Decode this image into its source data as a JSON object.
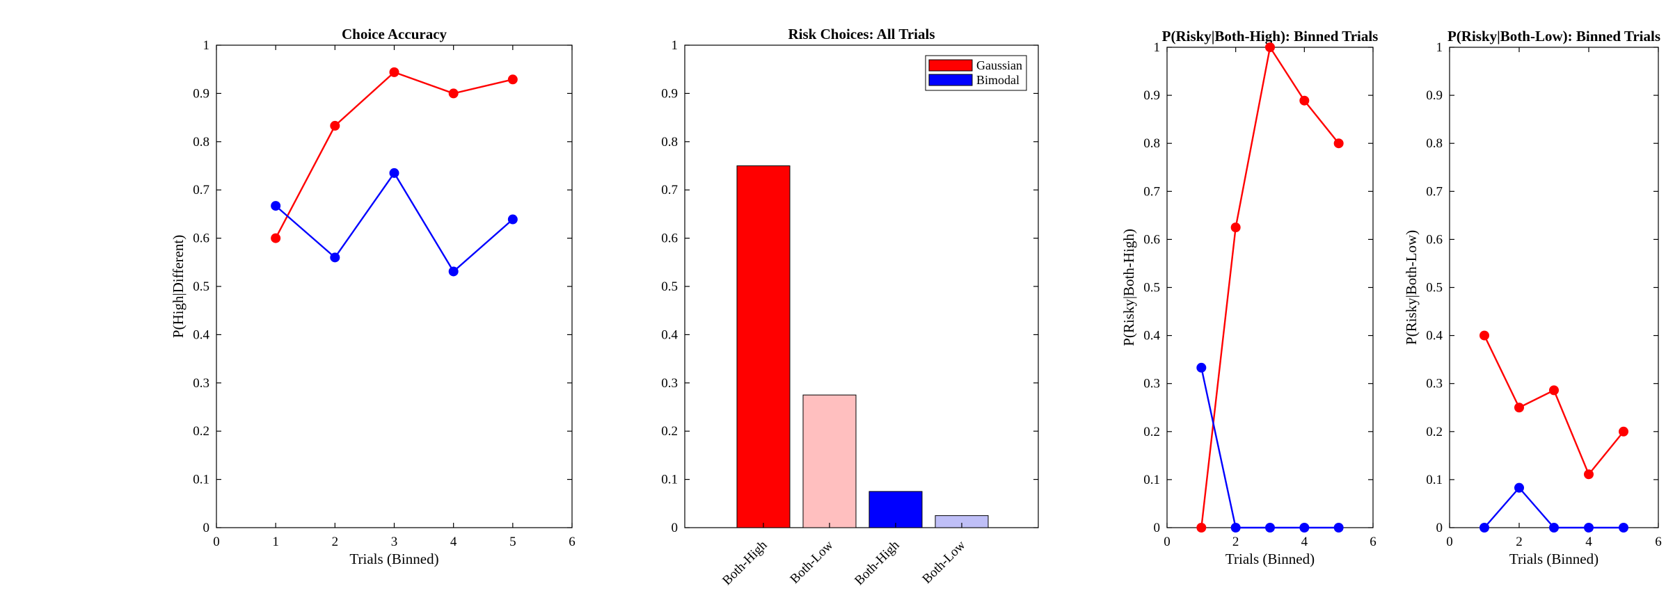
{
  "chart_data": [
    {
      "type": "line",
      "title": "Choice Accuracy",
      "xlabel": "Trials (Binned)",
      "ylabel": "P(High|Different)",
      "xlim": [
        0,
        6
      ],
      "ylim": [
        0,
        1
      ],
      "xticks": [
        0,
        1,
        2,
        3,
        4,
        5,
        6
      ],
      "yticks": [
        0,
        0.1,
        0.2,
        0.3,
        0.4,
        0.5,
        0.6,
        0.7,
        0.8,
        0.9,
        1
      ],
      "x": [
        1,
        2,
        3,
        4,
        5
      ],
      "series": [
        {
          "color": "#ff0000",
          "values": [
            0.6,
            0.833,
            0.944,
            0.9,
            0.929
          ]
        },
        {
          "color": "#0000ff",
          "values": [
            0.667,
            0.56,
            0.735,
            0.531,
            0.639
          ]
        }
      ],
      "grid": false
    },
    {
      "type": "bar",
      "title": "Risk Choices: All Trials",
      "ylim": [
        0,
        1
      ],
      "yticks": [
        0,
        0.1,
        0.2,
        0.3,
        0.4,
        0.5,
        0.6,
        0.7,
        0.8,
        0.9,
        1
      ],
      "categories": [
        "Both-High",
        "Both-Low",
        "Both-High",
        "Both-Low"
      ],
      "values": [
        0.75,
        0.275,
        0.075,
        0.025
      ],
      "bar_colors": [
        "#ff0000",
        "#ffbfbf",
        "#0000ff",
        "#bfbff7"
      ],
      "legend": {
        "position": "top-right",
        "entries": [
          {
            "label": "Gaussian",
            "color": "#ff0000"
          },
          {
            "label": "Bimodal",
            "color": "#0000ff"
          }
        ]
      },
      "grid": false
    },
    {
      "type": "line",
      "title": "P(Risky|Both-High): Binned Trials",
      "xlabel": "Trials (Binned)",
      "ylabel": "P(Risky|Both-High)",
      "xlim": [
        0,
        6
      ],
      "ylim": [
        0,
        1
      ],
      "xticks": [
        0,
        2,
        4,
        6
      ],
      "yticks": [
        0,
        0.1,
        0.2,
        0.3,
        0.4,
        0.5,
        0.6,
        0.7,
        0.8,
        0.9,
        1
      ],
      "x": [
        1,
        2,
        3,
        4,
        5
      ],
      "series": [
        {
          "color": "#ff0000",
          "values": [
            0,
            0.625,
            1.0,
            0.889,
            0.8
          ]
        },
        {
          "color": "#0000ff",
          "values": [
            0.333,
            0,
            0,
            0,
            0
          ]
        }
      ],
      "grid": false
    },
    {
      "type": "line",
      "title": "P(Risky|Both-Low): Binned Trials",
      "xlabel": "Trials (Binned)",
      "ylabel": "P(Risky|Both-Low)",
      "xlim": [
        0,
        6
      ],
      "ylim": [
        0,
        1
      ],
      "xticks": [
        0,
        2,
        4,
        6
      ],
      "yticks": [
        0,
        0.1,
        0.2,
        0.3,
        0.4,
        0.5,
        0.6,
        0.7,
        0.8,
        0.9,
        1
      ],
      "x": [
        1,
        2,
        3,
        4,
        5
      ],
      "series": [
        {
          "color": "#ff0000",
          "values": [
            0.4,
            0.25,
            0.286,
            0.111,
            0.2
          ]
        },
        {
          "color": "#0000ff",
          "values": [
            0,
            0.083,
            0,
            0,
            0
          ]
        }
      ],
      "grid": false
    }
  ]
}
